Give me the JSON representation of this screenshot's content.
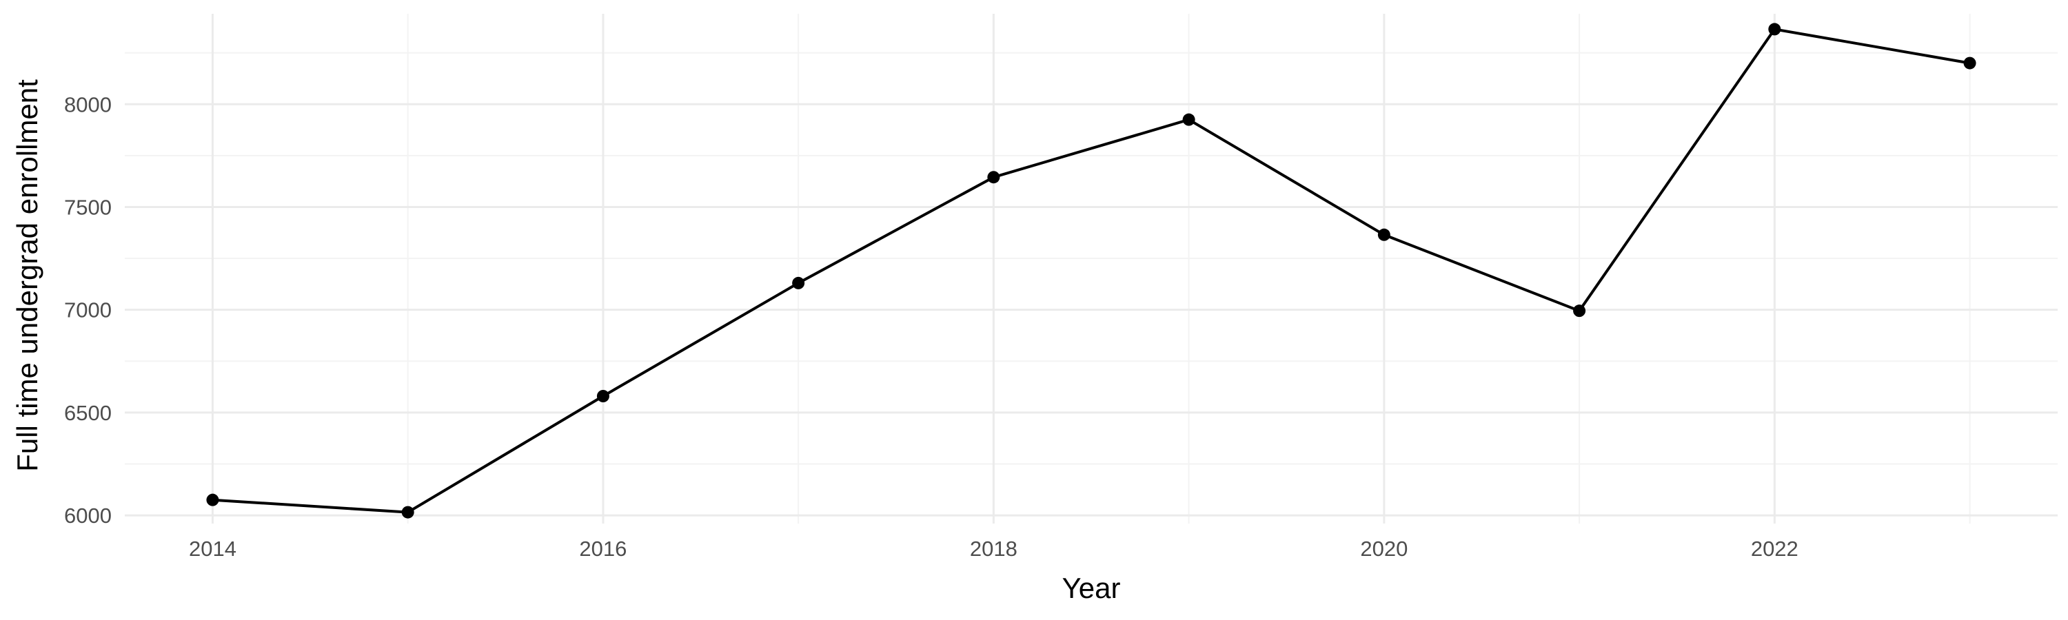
{
  "chart_data": {
    "type": "line",
    "title": "",
    "xlabel": "Year",
    "ylabel": "Full time undergrad enrollment",
    "x": [
      2014,
      2015,
      2016,
      2017,
      2018,
      2019,
      2020,
      2021,
      2022,
      2023
    ],
    "series": [
      {
        "values": [
          6075,
          6015,
          6580,
          7130,
          7645,
          7925,
          7365,
          6995,
          8365,
          8200
        ]
      }
    ],
    "xlim": [
      2013.55,
      2023.45
    ],
    "ylim": [
      5960,
      8440
    ],
    "x_ticks": [
      2014,
      2016,
      2018,
      2020,
      2022
    ],
    "y_ticks": [
      6000,
      6500,
      7000,
      7500,
      8000
    ],
    "grid": true,
    "legend": "none",
    "line_color": "#000000"
  }
}
